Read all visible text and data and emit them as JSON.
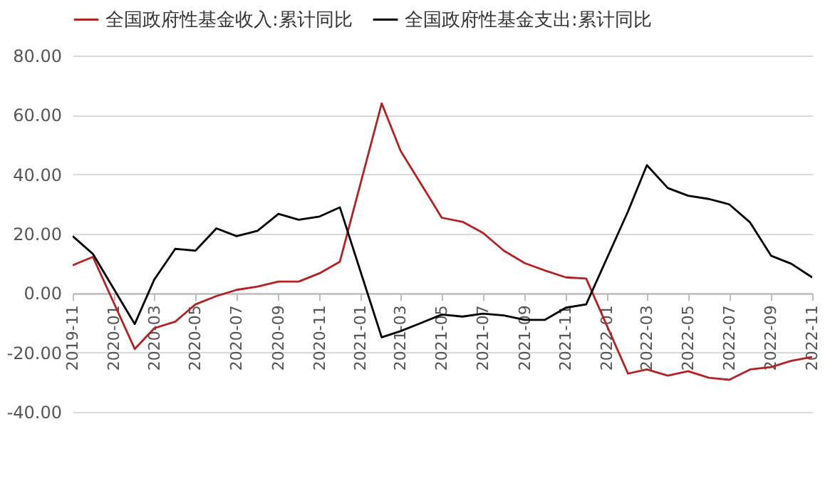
{
  "chart_data": {
    "type": "line",
    "legend": "top",
    "grid": "y",
    "line_style": "solid",
    "x": [
      "2019-11",
      "2019-12",
      "2020-02",
      "2020-03",
      "2020-04",
      "2020-05",
      "2020-06",
      "2020-07",
      "2020-08",
      "2020-09",
      "2020-10",
      "2020-11",
      "2020-12",
      "2021-02",
      "2021-03",
      "2021-04",
      "2021-05",
      "2021-06",
      "2021-07",
      "2021-08",
      "2021-09",
      "2021-10",
      "2021-11",
      "2021-12",
      "2022-02",
      "2022-03",
      "2022-04",
      "2022-05",
      "2022-06",
      "2022-07",
      "2022-08",
      "2022-09",
      "2022-10",
      "2022-11"
    ],
    "xlim": [
      "2019-11",
      "2022-11"
    ],
    "xticks": [
      "2019-11",
      "2020-01",
      "2020-03",
      "2020-05",
      "2020-07",
      "2020-09",
      "2020-11",
      "2021-01",
      "2021-03",
      "2021-05",
      "2021-07",
      "2021-09",
      "2021-11",
      "2022-01",
      "2022-03",
      "2022-05",
      "2022-07",
      "2022-09",
      "2022-11"
    ],
    "ylim": [
      -40,
      80
    ],
    "yticks": [
      {
        "value": -40,
        "label": "-40.00"
      },
      {
        "value": -20,
        "label": "-20.00"
      },
      {
        "value": 0,
        "label": "0.00"
      },
      {
        "value": 20,
        "label": "20.00"
      },
      {
        "value": 40,
        "label": "40.00"
      },
      {
        "value": 60,
        "label": "60.00"
      },
      {
        "value": 80,
        "label": "80.00"
      }
    ],
    "series": [
      {
        "name": "全国政府性基金收入:累计同比",
        "color": "#b22222",
        "values": [
          9.4,
          12.2,
          -18.8,
          -11.8,
          -9.6,
          -3.8,
          -1.0,
          1.1,
          2.2,
          3.9,
          3.9,
          6.7,
          10.6,
          63.9,
          47.9,
          36.5,
          25.4,
          24.0,
          20.3,
          14.3,
          10.1,
          7.6,
          5.3,
          4.9,
          -27.1,
          -25.7,
          -27.8,
          -26.3,
          -28.5,
          -29.2,
          -25.7,
          -24.9,
          -22.8,
          -21.5
        ]
      },
      {
        "name": "全国政府性基金支出:累计同比",
        "color": "#000000",
        "values": [
          19.2,
          13.2,
          -10.4,
          4.6,
          14.9,
          14.3,
          21.8,
          19.2,
          21.0,
          26.7,
          24.7,
          25.8,
          28.9,
          -14.9,
          -12.8,
          -10.0,
          -7.2,
          -7.9,
          -6.9,
          -7.5,
          -9.0,
          -9.0,
          -4.9,
          -3.8,
          27.5,
          43.1,
          35.4,
          32.8,
          31.7,
          29.9,
          23.8,
          12.6,
          9.9,
          5.3
        ]
      }
    ]
  }
}
